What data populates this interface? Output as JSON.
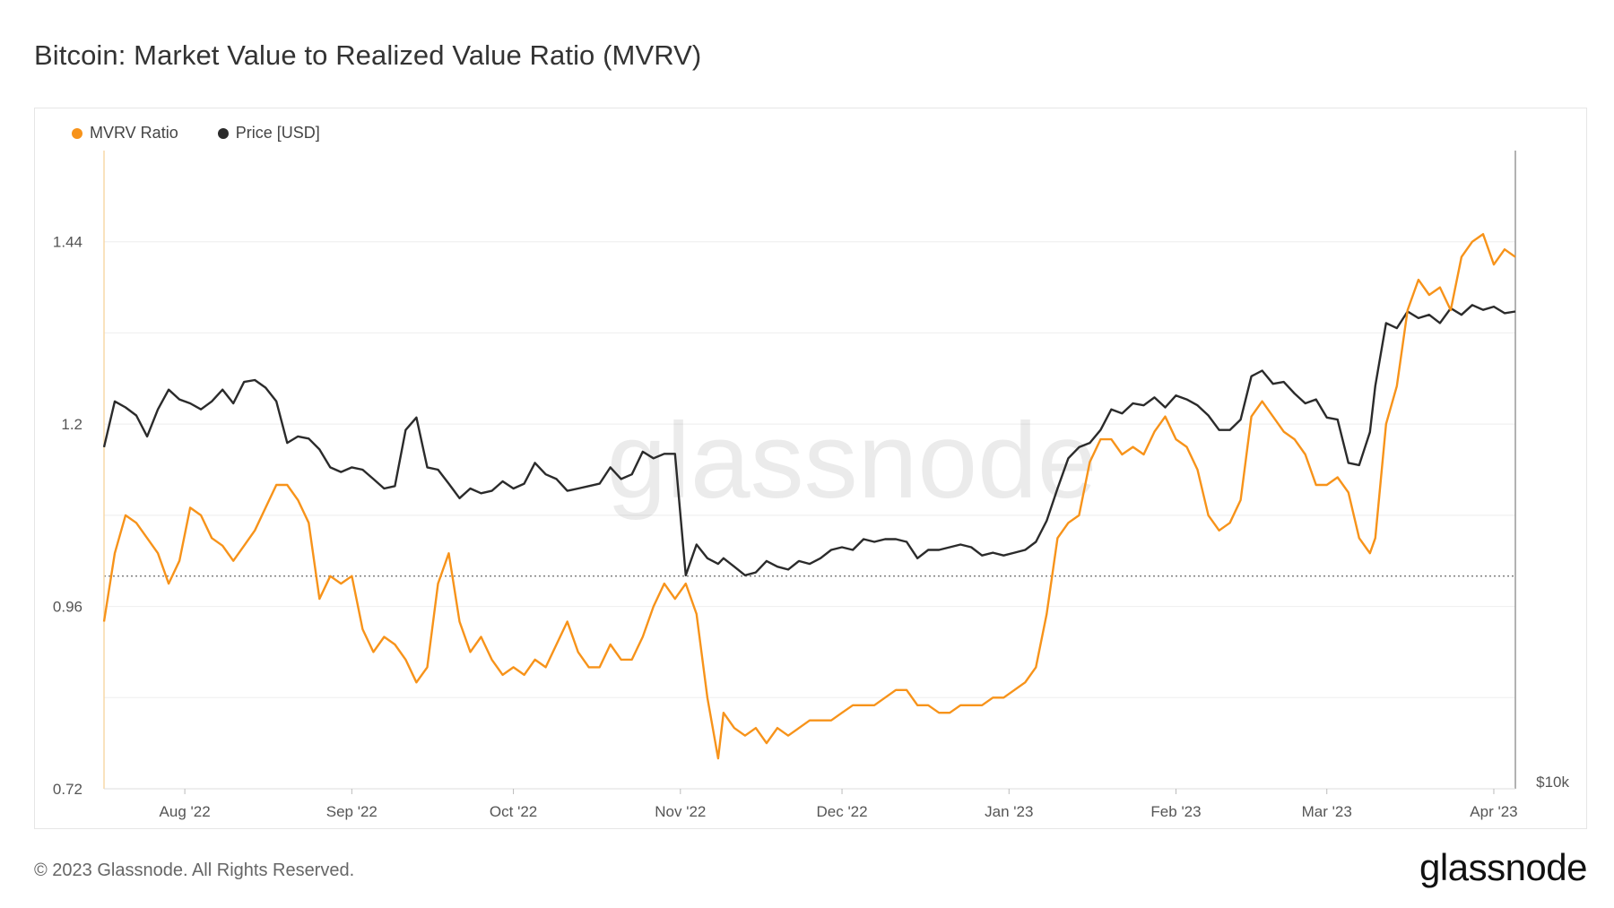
{
  "title": "Bitcoin: Market Value to Realized Value Ratio (MVRV)",
  "footer": "© 2023 Glassnode. All Rights Reserved.",
  "brand": "glassnode",
  "watermark": "glassnode",
  "colors": {
    "mvrv": "#f7931a",
    "price": "#2b2b2b",
    "grid": "#eeeeee"
  },
  "chart_data": {
    "type": "line",
    "x_range": [
      "2022-07-17",
      "2023-04-05"
    ],
    "x_ticks": [
      "Aug '22",
      "Sep '22",
      "Oct '22",
      "Nov '22",
      "Dec '22",
      "Jan '23",
      "Feb '23",
      "Mar '23",
      "Apr '23"
    ],
    "y_ticks": [
      "1.44",
      "1.2",
      "0.96",
      "0.72"
    ],
    "ylim": [
      0.72,
      1.56
    ],
    "reference_line": 1.0,
    "right_axis_label": "$10k",
    "legend_position": "top-left",
    "grid": true,
    "series": [
      {
        "name": "MVRV Ratio",
        "color": "#f7931a",
        "x": [
          "2022-07-17",
          "2022-07-19",
          "2022-07-21",
          "2022-07-23",
          "2022-07-25",
          "2022-07-27",
          "2022-07-29",
          "2022-07-31",
          "2022-08-02",
          "2022-08-04",
          "2022-08-06",
          "2022-08-08",
          "2022-08-10",
          "2022-08-12",
          "2022-08-14",
          "2022-08-16",
          "2022-08-18",
          "2022-08-20",
          "2022-08-22",
          "2022-08-24",
          "2022-08-26",
          "2022-08-28",
          "2022-08-30",
          "2022-09-01",
          "2022-09-03",
          "2022-09-05",
          "2022-09-07",
          "2022-09-09",
          "2022-09-11",
          "2022-09-13",
          "2022-09-15",
          "2022-09-17",
          "2022-09-19",
          "2022-09-21",
          "2022-09-23",
          "2022-09-25",
          "2022-09-27",
          "2022-09-29",
          "2022-10-01",
          "2022-10-03",
          "2022-10-05",
          "2022-10-07",
          "2022-10-09",
          "2022-10-11",
          "2022-10-13",
          "2022-10-15",
          "2022-10-17",
          "2022-10-19",
          "2022-10-21",
          "2022-10-23",
          "2022-10-25",
          "2022-10-27",
          "2022-10-29",
          "2022-10-31",
          "2022-11-02",
          "2022-11-04",
          "2022-11-06",
          "2022-11-08",
          "2022-11-09",
          "2022-11-11",
          "2022-11-13",
          "2022-11-15",
          "2022-11-17",
          "2022-11-19",
          "2022-11-21",
          "2022-11-23",
          "2022-11-25",
          "2022-11-27",
          "2022-11-29",
          "2022-12-01",
          "2022-12-03",
          "2022-12-05",
          "2022-12-07",
          "2022-12-09",
          "2022-12-11",
          "2022-12-13",
          "2022-12-15",
          "2022-12-17",
          "2022-12-19",
          "2022-12-21",
          "2022-12-23",
          "2022-12-25",
          "2022-12-27",
          "2022-12-29",
          "2022-12-31",
          "2023-01-02",
          "2023-01-04",
          "2023-01-06",
          "2023-01-08",
          "2023-01-10",
          "2023-01-12",
          "2023-01-14",
          "2023-01-16",
          "2023-01-18",
          "2023-01-20",
          "2023-01-22",
          "2023-01-24",
          "2023-01-26",
          "2023-01-28",
          "2023-01-30",
          "2023-02-01",
          "2023-02-03",
          "2023-02-05",
          "2023-02-07",
          "2023-02-09",
          "2023-02-11",
          "2023-02-13",
          "2023-02-15",
          "2023-02-17",
          "2023-02-19",
          "2023-02-21",
          "2023-02-23",
          "2023-02-25",
          "2023-02-27",
          "2023-03-01",
          "2023-03-03",
          "2023-03-05",
          "2023-03-07",
          "2023-03-09",
          "2023-03-10",
          "2023-03-12",
          "2023-03-14",
          "2023-03-16",
          "2023-03-18",
          "2023-03-20",
          "2023-03-22",
          "2023-03-24",
          "2023-03-26",
          "2023-03-28",
          "2023-03-30",
          "2023-04-01",
          "2023-04-03",
          "2023-04-05"
        ],
        "values": [
          0.94,
          1.03,
          1.08,
          1.07,
          1.05,
          1.03,
          0.99,
          1.02,
          1.09,
          1.08,
          1.05,
          1.04,
          1.02,
          1.04,
          1.06,
          1.09,
          1.12,
          1.12,
          1.1,
          1.07,
          0.97,
          1.0,
          0.99,
          1.0,
          0.93,
          0.9,
          0.92,
          0.91,
          0.89,
          0.86,
          0.88,
          0.99,
          1.03,
          0.94,
          0.9,
          0.92,
          0.89,
          0.87,
          0.88,
          0.87,
          0.89,
          0.88,
          0.91,
          0.94,
          0.9,
          0.88,
          0.88,
          0.91,
          0.89,
          0.89,
          0.92,
          0.96,
          0.99,
          0.97,
          0.99,
          0.95,
          0.84,
          0.76,
          0.82,
          0.8,
          0.79,
          0.8,
          0.78,
          0.8,
          0.79,
          0.8,
          0.81,
          0.81,
          0.81,
          0.82,
          0.83,
          0.83,
          0.83,
          0.84,
          0.85,
          0.85,
          0.83,
          0.83,
          0.82,
          0.82,
          0.83,
          0.83,
          0.83,
          0.84,
          0.84,
          0.85,
          0.86,
          0.88,
          0.95,
          1.05,
          1.07,
          1.08,
          1.15,
          1.18,
          1.18,
          1.16,
          1.17,
          1.16,
          1.19,
          1.21,
          1.18,
          1.17,
          1.14,
          1.08,
          1.06,
          1.07,
          1.1,
          1.21,
          1.23,
          1.21,
          1.19,
          1.18,
          1.16,
          1.12,
          1.12,
          1.13,
          1.11,
          1.05,
          1.03,
          1.05,
          1.2,
          1.25,
          1.35,
          1.39,
          1.37,
          1.38,
          1.35,
          1.42,
          1.44,
          1.45,
          1.41,
          1.43,
          1.42
        ]
      },
      {
        "name": "Price [USD]",
        "color": "#2b2b2b",
        "x": [
          "2022-07-17",
          "2022-07-19",
          "2022-07-21",
          "2022-07-23",
          "2022-07-25",
          "2022-07-27",
          "2022-07-29",
          "2022-07-31",
          "2022-08-02",
          "2022-08-04",
          "2022-08-06",
          "2022-08-08",
          "2022-08-10",
          "2022-08-12",
          "2022-08-14",
          "2022-08-16",
          "2022-08-18",
          "2022-08-20",
          "2022-08-22",
          "2022-08-24",
          "2022-08-26",
          "2022-08-28",
          "2022-08-30",
          "2022-09-01",
          "2022-09-03",
          "2022-09-05",
          "2022-09-07",
          "2022-09-09",
          "2022-09-11",
          "2022-09-13",
          "2022-09-15",
          "2022-09-17",
          "2022-09-19",
          "2022-09-21",
          "2022-09-23",
          "2022-09-25",
          "2022-09-27",
          "2022-09-29",
          "2022-10-01",
          "2022-10-03",
          "2022-10-05",
          "2022-10-07",
          "2022-10-09",
          "2022-10-11",
          "2022-10-13",
          "2022-10-15",
          "2022-10-17",
          "2022-10-19",
          "2022-10-21",
          "2022-10-23",
          "2022-10-25",
          "2022-10-27",
          "2022-10-29",
          "2022-10-31",
          "2022-11-02",
          "2022-11-04",
          "2022-11-06",
          "2022-11-08",
          "2022-11-09",
          "2022-11-11",
          "2022-11-13",
          "2022-11-15",
          "2022-11-17",
          "2022-11-19",
          "2022-11-21",
          "2022-11-23",
          "2022-11-25",
          "2022-11-27",
          "2022-11-29",
          "2022-12-01",
          "2022-12-03",
          "2022-12-05",
          "2022-12-07",
          "2022-12-09",
          "2022-12-11",
          "2022-12-13",
          "2022-12-15",
          "2022-12-17",
          "2022-12-19",
          "2022-12-21",
          "2022-12-23",
          "2022-12-25",
          "2022-12-27",
          "2022-12-29",
          "2022-12-31",
          "2023-01-02",
          "2023-01-04",
          "2023-01-06",
          "2023-01-08",
          "2023-01-10",
          "2023-01-12",
          "2023-01-14",
          "2023-01-16",
          "2023-01-18",
          "2023-01-20",
          "2023-01-22",
          "2023-01-24",
          "2023-01-26",
          "2023-01-28",
          "2023-01-30",
          "2023-02-01",
          "2023-02-03",
          "2023-02-05",
          "2023-02-07",
          "2023-02-09",
          "2023-02-11",
          "2023-02-13",
          "2023-02-15",
          "2023-02-17",
          "2023-02-19",
          "2023-02-21",
          "2023-02-23",
          "2023-02-25",
          "2023-02-27",
          "2023-03-01",
          "2023-03-03",
          "2023-03-05",
          "2023-03-07",
          "2023-03-09",
          "2023-03-10",
          "2023-03-12",
          "2023-03-14",
          "2023-03-16",
          "2023-03-18",
          "2023-03-20",
          "2023-03-22",
          "2023-03-24",
          "2023-03-26",
          "2023-03-28",
          "2023-03-30",
          "2023-04-01",
          "2023-04-03",
          "2023-04-05"
        ],
        "values": [
          21000,
          23200,
          22900,
          22500,
          21500,
          22800,
          23800,
          23300,
          23100,
          22800,
          23200,
          23800,
          23100,
          24200,
          24300,
          23900,
          23200,
          21200,
          21500,
          21400,
          20900,
          20100,
          19900,
          20100,
          20000,
          19600,
          19200,
          19300,
          21800,
          22400,
          20100,
          20000,
          19400,
          18800,
          19200,
          19000,
          19100,
          19500,
          19200,
          19400,
          20300,
          19800,
          19600,
          19100,
          19200,
          19300,
          19400,
          20100,
          19600,
          19800,
          20800,
          20500,
          20700,
          20700,
          15900,
          17000,
          16500,
          16300,
          16500,
          16200,
          15900,
          16000,
          16400,
          16200,
          16100,
          16400,
          16300,
          16500,
          16800,
          16900,
          16800,
          17200,
          17100,
          17200,
          17200,
          17100,
          16500,
          16800,
          16800,
          16900,
          17000,
          16900,
          16600,
          16700,
          16600,
          16700,
          16800,
          17100,
          17900,
          19200,
          20500,
          21000,
          21200,
          21800,
          22800,
          22600,
          23100,
          23000,
          23400,
          22900,
          23500,
          23300,
          23000,
          22500,
          21800,
          21800,
          22300,
          24500,
          24800,
          24100,
          24200,
          23600,
          23100,
          23300,
          22400,
          22300,
          20300,
          20200,
          21700,
          24000,
          27500,
          27200,
          28200,
          27800,
          28000,
          27500,
          28400,
          28000,
          28600,
          28300,
          28500,
          28100,
          28200
        ]
      }
    ]
  }
}
